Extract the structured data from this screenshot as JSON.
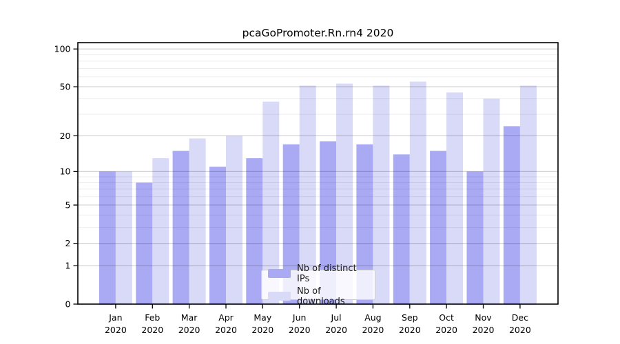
{
  "chart_data": {
    "type": "bar",
    "title": "pcaGoPromoter.Rn.rn4 2020",
    "categories": [
      "Jan",
      "Feb",
      "Mar",
      "Apr",
      "May",
      "Jun",
      "Jul",
      "Aug",
      "Sep",
      "Oct",
      "Nov",
      "Dec"
    ],
    "year_label": "2020",
    "series": [
      {
        "name": "Nb of distinct IPs",
        "color": "#a9a9f4",
        "values": [
          10,
          8,
          15,
          11,
          13,
          17,
          18,
          17,
          14,
          15,
          10,
          24
        ]
      },
      {
        "name": "Nb of downloads",
        "color": "#d9d9f8",
        "values": [
          10,
          13,
          19,
          20,
          38,
          51,
          53,
          51,
          55,
          45,
          40,
          51
        ]
      }
    ],
    "yscale": "log10(value+1)",
    "ylim": [
      0,
      113
    ],
    "y_ticks": [
      100,
      50,
      20,
      10,
      5,
      2,
      1,
      0
    ],
    "y_minor_gridlines": [
      90,
      80,
      70,
      60,
      40,
      30,
      9,
      8,
      7,
      6,
      4,
      3
    ],
    "grid": true,
    "legend_position": "lower center",
    "xlabel": "",
    "ylabel": ""
  },
  "colors": {
    "major_gridline": "rgba(0,0,0,0.20)",
    "minor_gridline": "rgba(0,0,0,0.07)",
    "axis": "#000000",
    "background": "#ffffff"
  }
}
